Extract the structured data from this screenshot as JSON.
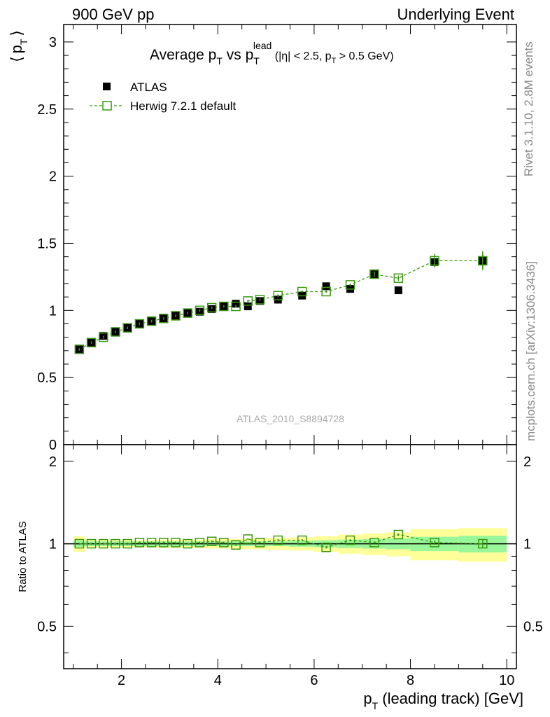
{
  "header": {
    "left": "900 GeV pp",
    "right": "Underlying Event"
  },
  "side_text": {
    "rivet": "Rivet 3.1.10,  2.8M events",
    "mcplots": "mcplots.cern.ch [arXiv:1306.3436]"
  },
  "watermark": "ATLAS_2010_S8894728",
  "colors": {
    "data": "#000000",
    "mc": "#3a9a10",
    "band_inner": "#99f799",
    "band_outer": "#ffff99"
  },
  "chart_data": [
    {
      "type": "scatter",
      "panel": "main",
      "title": "Average p_T vs p_T^lead (|η| < 2.5, p_T > 0.5 GeV)",
      "title_parts": {
        "a": "Average p",
        "sub1": "T",
        "b": " vs p",
        "sub2": "T",
        "sup": "lead",
        "c": " (|η| < 2.5, p",
        "sub3": "T",
        "d": " > 0.5 GeV)"
      },
      "ylabel": "⟨ p_T ⟩",
      "ylabel_parts": {
        "lb": "⟨",
        "p": "p",
        "sub": "T",
        "rb": "⟩"
      },
      "xlim": [
        0.8,
        10.2
      ],
      "ylim": [
        0,
        3.13
      ],
      "ytick_labels": [
        "0",
        "0.5",
        "1",
        "1.5",
        "2",
        "2.5",
        "3"
      ],
      "yticks": [
        0,
        0.5,
        1,
        1.5,
        2,
        2.5,
        3
      ],
      "legend": {
        "position": "top-left",
        "entries": [
          "ATLAS",
          "Herwig 7.2.1 default"
        ]
      },
      "x": [
        1.125,
        1.375,
        1.625,
        1.875,
        2.125,
        2.375,
        2.625,
        2.875,
        3.125,
        3.375,
        3.625,
        3.875,
        4.125,
        4.375,
        4.625,
        4.875,
        5.25,
        5.75,
        6.25,
        6.75,
        7.25,
        7.75,
        8.5,
        9.5
      ],
      "x_err": [
        0.125,
        0.125,
        0.125,
        0.125,
        0.125,
        0.125,
        0.125,
        0.125,
        0.125,
        0.125,
        0.125,
        0.125,
        0.125,
        0.125,
        0.125,
        0.125,
        0.25,
        0.25,
        0.25,
        0.25,
        0.25,
        0.25,
        0.5,
        0.5
      ],
      "series": [
        {
          "name": "ATLAS",
          "values": [
            0.71,
            0.76,
            0.81,
            0.84,
            0.87,
            0.9,
            0.92,
            0.94,
            0.96,
            0.98,
            0.99,
            1.01,
            1.03,
            1.05,
            1.03,
            1.07,
            1.08,
            1.11,
            1.18,
            1.16,
            1.27,
            1.15,
            1.36,
            1.37
          ],
          "errors": [
            0.01,
            0.01,
            0.01,
            0.01,
            0.01,
            0.01,
            0.01,
            0.01,
            0.01,
            0.01,
            0.01,
            0.01,
            0.01,
            0.01,
            0.01,
            0.01,
            0.01,
            0.01,
            0.01,
            0.01,
            0.02,
            0.01,
            0.03,
            0.05
          ]
        },
        {
          "name": "Herwig 7.2.1 default",
          "values": [
            0.71,
            0.76,
            0.8,
            0.84,
            0.87,
            0.9,
            0.92,
            0.94,
            0.96,
            0.98,
            1.0,
            1.02,
            1.03,
            1.03,
            1.07,
            1.08,
            1.11,
            1.14,
            1.14,
            1.19,
            1.27,
            1.24,
            1.37,
            1.37
          ],
          "errors": [
            0.01,
            0.01,
            0.01,
            0.01,
            0.01,
            0.01,
            0.01,
            0.01,
            0.01,
            0.01,
            0.01,
            0.01,
            0.01,
            0.01,
            0.01,
            0.01,
            0.01,
            0.01,
            0.01,
            0.01,
            0.02,
            0.02,
            0.05,
            0.07
          ]
        }
      ]
    },
    {
      "type": "line",
      "panel": "ratio",
      "ylabel": "Ratio to ATLAS",
      "xlabel": "p_T (leading track) [GeV]",
      "xlabel_parts": {
        "p": "p",
        "sub": "T",
        "rest": " (leading track) [GeV]"
      },
      "xlim": [
        0.8,
        10.2
      ],
      "ylim": [
        0.35,
        2.3
      ],
      "log_y": true,
      "xticks": [
        2,
        4,
        6,
        8,
        10
      ],
      "xtick_labels": [
        "2",
        "4",
        "6",
        "8",
        "10"
      ],
      "yticks": [
        0.5,
        1,
        2
      ],
      "ytick_labels": [
        "0.5",
        "1",
        "2"
      ],
      "x": [
        1.125,
        1.375,
        1.625,
        1.875,
        2.125,
        2.375,
        2.625,
        2.875,
        3.125,
        3.375,
        3.625,
        3.875,
        4.125,
        4.375,
        4.625,
        4.875,
        5.25,
        5.75,
        6.25,
        6.75,
        7.25,
        7.75,
        8.5,
        9.5
      ],
      "x_err": [
        0.125,
        0.125,
        0.125,
        0.125,
        0.125,
        0.125,
        0.125,
        0.125,
        0.125,
        0.125,
        0.125,
        0.125,
        0.125,
        0.125,
        0.125,
        0.125,
        0.25,
        0.25,
        0.25,
        0.25,
        0.25,
        0.25,
        0.5,
        0.5
      ],
      "series": [
        {
          "name": "Herwig 7.2.1 default",
          "values": [
            1.0,
            1.0,
            1.0,
            1.0,
            1.0,
            1.01,
            1.01,
            1.01,
            1.01,
            1.0,
            1.01,
            1.02,
            1.01,
            0.99,
            1.04,
            1.01,
            1.03,
            1.03,
            0.97,
            1.03,
            1.01,
            1.08,
            1.01,
            1.0
          ],
          "errors": [
            0.01,
            0.01,
            0.01,
            0.01,
            0.01,
            0.01,
            0.01,
            0.01,
            0.01,
            0.01,
            0.01,
            0.01,
            0.01,
            0.01,
            0.01,
            0.01,
            0.01,
            0.01,
            0.01,
            0.01,
            0.01,
            0.01,
            0.02,
            0.03
          ]
        }
      ],
      "band_inner": [
        0.025,
        0.02,
        0.02,
        0.02,
        0.02,
        0.02,
        0.02,
        0.02,
        0.02,
        0.02,
        0.02,
        0.02,
        0.02,
        0.02,
        0.02,
        0.02,
        0.02,
        0.025,
        0.03,
        0.035,
        0.04,
        0.045,
        0.06,
        0.07
      ],
      "band_outer": [
        0.065,
        0.03,
        0.03,
        0.03,
        0.03,
        0.03,
        0.03,
        0.035,
        0.035,
        0.035,
        0.035,
        0.04,
        0.04,
        0.04,
        0.045,
        0.045,
        0.05,
        0.055,
        0.065,
        0.08,
        0.09,
        0.1,
        0.13,
        0.14
      ]
    }
  ]
}
